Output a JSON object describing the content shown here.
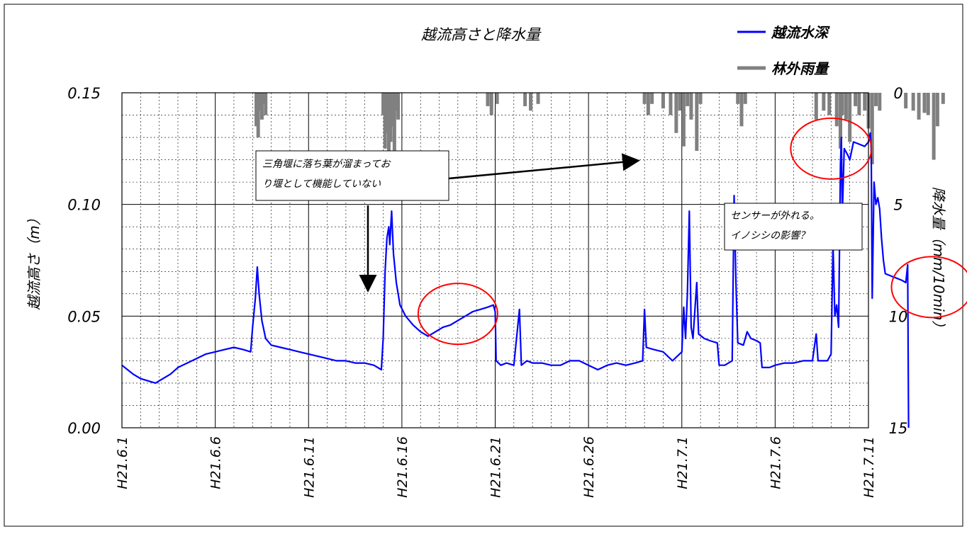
{
  "chart_data": {
    "type": "line",
    "title": "越流高さと降水量",
    "ylabel_left": "越流高さ（m）",
    "ylabel_right": "降水量（mm/10min）",
    "left_axis": {
      "min": 0.0,
      "max": 0.15,
      "ticks": [
        "0.00",
        "0.05",
        "0.10",
        "0.15"
      ]
    },
    "right_axis": {
      "min": 0,
      "max": 15,
      "inverted": true,
      "ticks": [
        "0",
        "5",
        "10",
        "15"
      ]
    },
    "x_axis": {
      "start_day": 1,
      "end_day": 41,
      "ticks": [
        "H21.6.1",
        "H21.6.6",
        "H21.6.11",
        "H21.6.16",
        "H21.6.21",
        "H21.6.26",
        "H21.7.1",
        "H21.7.6",
        "H21.7.11"
      ]
    },
    "grid": true,
    "legend": {
      "position": "top-right",
      "entries": [
        "越流水深",
        "林外雨量"
      ]
    },
    "series": [
      {
        "name": "越流水深",
        "color": "#0000ff",
        "points": [
          [
            1.0,
            0.028
          ],
          [
            1.3,
            0.026
          ],
          [
            1.6,
            0.024
          ],
          [
            2.0,
            0.022
          ],
          [
            2.4,
            0.021
          ],
          [
            2.8,
            0.02
          ],
          [
            3.2,
            0.022
          ],
          [
            3.6,
            0.024
          ],
          [
            4.0,
            0.027
          ],
          [
            4.5,
            0.029
          ],
          [
            5.0,
            0.031
          ],
          [
            5.5,
            0.033
          ],
          [
            6.0,
            0.034
          ],
          [
            6.5,
            0.035
          ],
          [
            7.0,
            0.036
          ],
          [
            7.5,
            0.035
          ],
          [
            7.9,
            0.034
          ],
          [
            8.0,
            0.045
          ],
          [
            8.15,
            0.058
          ],
          [
            8.25,
            0.072
          ],
          [
            8.35,
            0.06
          ],
          [
            8.5,
            0.048
          ],
          [
            8.7,
            0.04
          ],
          [
            9.0,
            0.037
          ],
          [
            9.5,
            0.036
          ],
          [
            10.0,
            0.035
          ],
          [
            10.5,
            0.034
          ],
          [
            11.0,
            0.033
          ],
          [
            11.5,
            0.032
          ],
          [
            12.0,
            0.031
          ],
          [
            12.5,
            0.03
          ],
          [
            13.0,
            0.03
          ],
          [
            13.5,
            0.029
          ],
          [
            14.0,
            0.029
          ],
          [
            14.5,
            0.028
          ],
          [
            14.9,
            0.026
          ],
          [
            15.0,
            0.04
          ],
          [
            15.1,
            0.07
          ],
          [
            15.2,
            0.085
          ],
          [
            15.3,
            0.09
          ],
          [
            15.35,
            0.082
          ],
          [
            15.45,
            0.097
          ],
          [
            15.55,
            0.078
          ],
          [
            15.7,
            0.065
          ],
          [
            15.9,
            0.055
          ],
          [
            16.2,
            0.05
          ],
          [
            16.6,
            0.046
          ],
          [
            17.0,
            0.043
          ],
          [
            17.4,
            0.041
          ],
          [
            17.8,
            0.043
          ],
          [
            18.2,
            0.045
          ],
          [
            18.6,
            0.046
          ],
          [
            19.0,
            0.048
          ],
          [
            19.4,
            0.05
          ],
          [
            19.8,
            0.052
          ],
          [
            20.2,
            0.053
          ],
          [
            20.6,
            0.054
          ],
          [
            20.9,
            0.055
          ],
          [
            21.0,
            0.052
          ],
          [
            21.05,
            0.03
          ],
          [
            21.3,
            0.028
          ],
          [
            21.6,
            0.029
          ],
          [
            22.0,
            0.028
          ],
          [
            22.3,
            0.053
          ],
          [
            22.4,
            0.028
          ],
          [
            22.7,
            0.03
          ],
          [
            23.0,
            0.029
          ],
          [
            23.5,
            0.029
          ],
          [
            24.0,
            0.028
          ],
          [
            24.5,
            0.028
          ],
          [
            25.0,
            0.03
          ],
          [
            25.5,
            0.03
          ],
          [
            26.0,
            0.028
          ],
          [
            26.5,
            0.026
          ],
          [
            27.0,
            0.028
          ],
          [
            27.5,
            0.029
          ],
          [
            28.0,
            0.028
          ],
          [
            28.5,
            0.029
          ],
          [
            28.9,
            0.03
          ],
          [
            29.0,
            0.053
          ],
          [
            29.1,
            0.036
          ],
          [
            29.5,
            0.035
          ],
          [
            30.0,
            0.034
          ],
          [
            30.5,
            0.03
          ],
          [
            31.0,
            0.034
          ],
          [
            31.1,
            0.054
          ],
          [
            31.2,
            0.04
          ],
          [
            31.3,
            0.06
          ],
          [
            31.4,
            0.097
          ],
          [
            31.5,
            0.045
          ],
          [
            31.6,
            0.04
          ],
          [
            31.8,
            0.065
          ],
          [
            31.9,
            0.042
          ],
          [
            32.2,
            0.04
          ],
          [
            32.5,
            0.039
          ],
          [
            32.9,
            0.038
          ],
          [
            33.0,
            0.028
          ],
          [
            33.3,
            0.028
          ],
          [
            33.7,
            0.03
          ],
          [
            33.8,
            0.104
          ],
          [
            33.9,
            0.065
          ],
          [
            34.0,
            0.038
          ],
          [
            34.3,
            0.037
          ],
          [
            34.5,
            0.043
          ],
          [
            34.7,
            0.04
          ],
          [
            35.0,
            0.039
          ],
          [
            35.2,
            0.038
          ],
          [
            35.3,
            0.027
          ],
          [
            35.7,
            0.027
          ],
          [
            36.0,
            0.028
          ],
          [
            36.5,
            0.029
          ],
          [
            37.0,
            0.029
          ],
          [
            37.5,
            0.03
          ],
          [
            38.0,
            0.03
          ],
          [
            38.2,
            0.042
          ],
          [
            38.3,
            0.03
          ],
          [
            38.8,
            0.03
          ],
          [
            39.0,
            0.033
          ],
          [
            39.1,
            0.082
          ],
          [
            39.2,
            0.05
          ],
          [
            39.3,
            0.055
          ],
          [
            39.4,
            0.045
          ],
          [
            39.5,
            0.118
          ],
          [
            39.55,
            0.13
          ],
          [
            39.6,
            0.095
          ],
          [
            39.7,
            0.125
          ],
          [
            39.9,
            0.122
          ],
          [
            40.0,
            0.12
          ],
          [
            40.2,
            0.128
          ],
          [
            40.5,
            0.127
          ],
          [
            40.8,
            0.126
          ],
          [
            41.0,
            0.128
          ],
          [
            41.1,
            0.132
          ],
          [
            41.15,
            0.125
          ],
          [
            41.2,
            0.058
          ],
          [
            41.3,
            0.11
          ],
          [
            41.4,
            0.1
          ],
          [
            41.5,
            0.103
          ],
          [
            41.6,
            0.098
          ],
          [
            41.7,
            0.085
          ],
          [
            41.8,
            0.075
          ],
          [
            41.9,
            0.069
          ],
          [
            42.2,
            0.068
          ],
          [
            42.5,
            0.067
          ],
          [
            42.8,
            0.066
          ],
          [
            43.0,
            0.065
          ],
          [
            43.1,
            0.073
          ],
          [
            43.15,
            0.0
          ]
        ]
      },
      {
        "name": "林外雨量",
        "color": "#808080",
        "bars": [
          [
            8.2,
            1.5
          ],
          [
            8.3,
            2.0
          ],
          [
            8.4,
            0.8
          ],
          [
            8.5,
            1.2
          ],
          [
            8.6,
            0.5
          ],
          [
            8.7,
            1.0
          ],
          [
            15.0,
            1.0
          ],
          [
            15.1,
            2.5
          ],
          [
            15.2,
            1.8
          ],
          [
            15.3,
            3.5
          ],
          [
            15.4,
            2.2
          ],
          [
            15.5,
            1.5
          ],
          [
            15.6,
            2.6
          ],
          [
            15.7,
            0.8
          ],
          [
            15.8,
            1.2
          ],
          [
            20.6,
            0.6
          ],
          [
            20.8,
            1.0
          ],
          [
            21.1,
            0.5
          ],
          [
            22.6,
            0.6
          ],
          [
            22.9,
            0.8
          ],
          [
            23.3,
            0.5
          ],
          [
            29.0,
            0.5
          ],
          [
            29.2,
            1.0
          ],
          [
            29.4,
            0.5
          ],
          [
            30.0,
            0.7
          ],
          [
            30.4,
            1.0
          ],
          [
            30.7,
            1.8
          ],
          [
            30.9,
            0.8
          ],
          [
            31.1,
            2.4
          ],
          [
            31.3,
            0.6
          ],
          [
            31.5,
            1.2
          ],
          [
            31.8,
            2.6
          ],
          [
            32.0,
            0.5
          ],
          [
            34.0,
            0.5
          ],
          [
            34.2,
            1.5
          ],
          [
            34.4,
            0.5
          ],
          [
            38.2,
            1.2
          ],
          [
            38.6,
            0.8
          ],
          [
            38.9,
            1.0
          ],
          [
            39.3,
            1.5
          ],
          [
            39.5,
            2.5
          ],
          [
            39.6,
            1.0
          ],
          [
            39.8,
            1.2
          ],
          [
            40.0,
            2.2
          ],
          [
            40.3,
            0.6
          ],
          [
            40.5,
            1.0
          ],
          [
            40.8,
            0.8
          ],
          [
            41.0,
            1.6
          ],
          [
            41.2,
            3.2
          ],
          [
            41.4,
            0.6
          ],
          [
            41.6,
            0.8
          ],
          [
            43.0,
            0.7
          ],
          [
            43.4,
            0.8
          ],
          [
            43.7,
            1.2
          ],
          [
            44.0,
            0.9
          ],
          [
            44.2,
            1.0
          ],
          [
            44.5,
            3.0
          ],
          [
            44.7,
            1.5
          ],
          [
            45.0,
            0.5
          ],
          [
            46.5,
            0.5
          ],
          [
            46.8,
            1.0
          ],
          [
            47.1,
            0.5
          ]
        ]
      }
    ],
    "annotations": [
      {
        "lines": [
          "三角堰に落ち葉が溜まってお",
          "り堰として機能していない"
        ]
      },
      {
        "lines": [
          "センサーが外れる。",
          "イノシシの影響？"
        ]
      }
    ],
    "circled_regions": [
      {
        "day": 19.0,
        "value": 0.051
      },
      {
        "day": 39.0,
        "value": 0.125
      },
      {
        "day": 44.4,
        "value": 0.063
      }
    ]
  }
}
